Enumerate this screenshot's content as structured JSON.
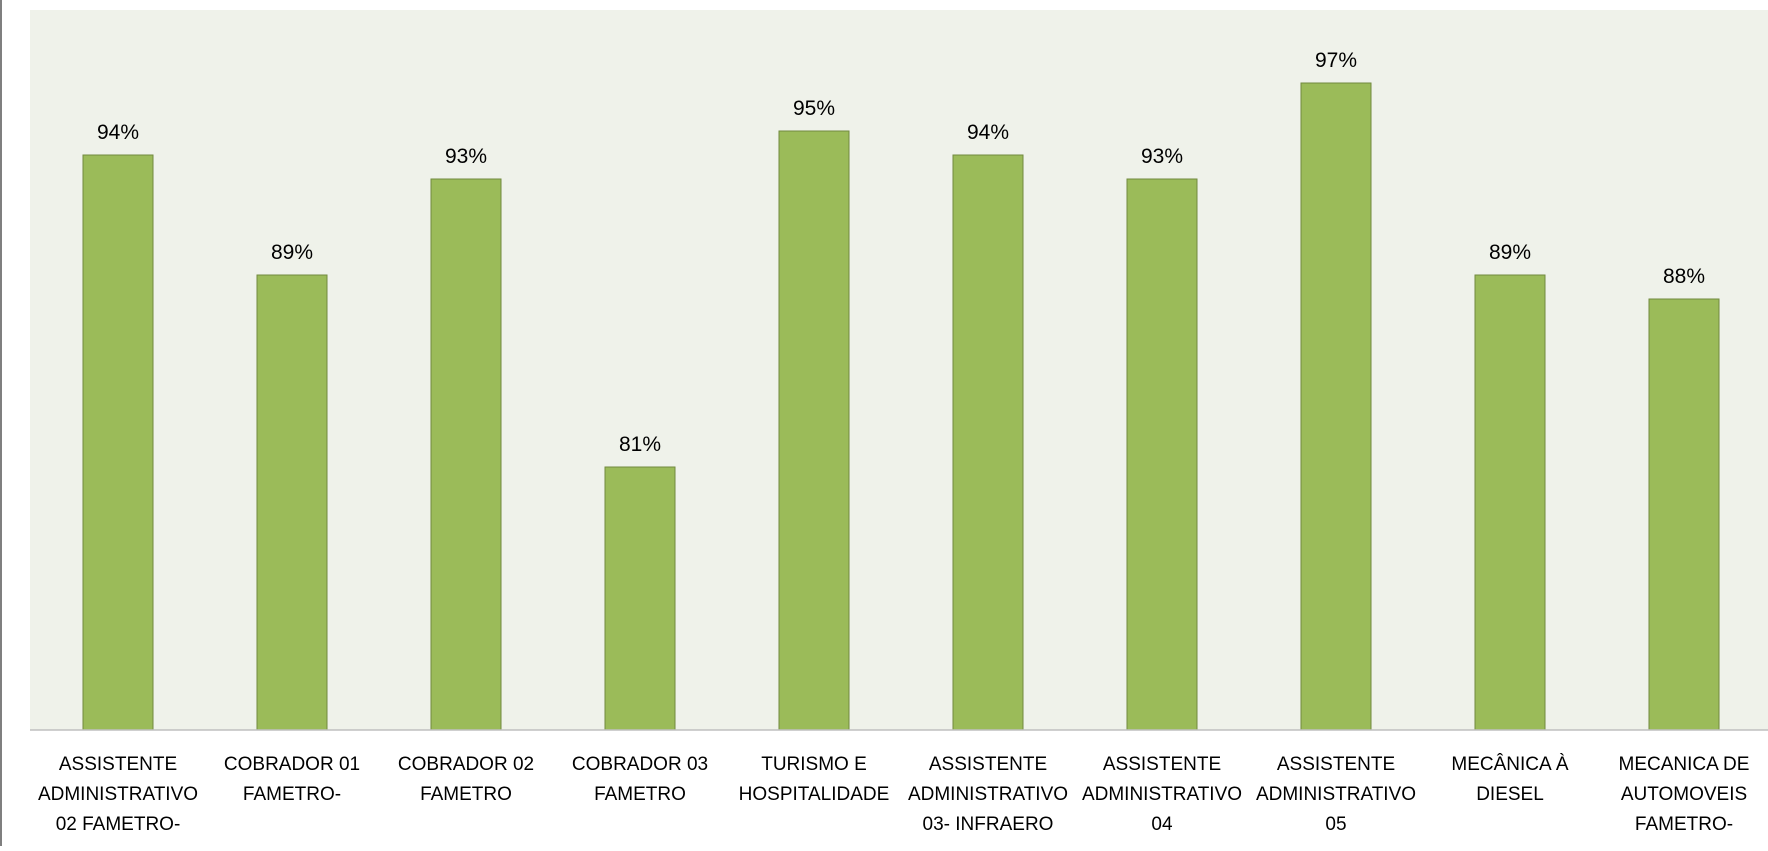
{
  "chart_data": {
    "type": "bar",
    "categories": [
      "ASSISTENTE ADMINISTRATIVO 02 FAMETRO-",
      "COBRADOR 01 FAMETRO-",
      "COBRADOR 02 FAMETRO",
      "COBRADOR 03 FAMETRO",
      "TURISMO E HOSPITALIDADE",
      "ASSISTENTE ADMINISTRATIVO 03- INFRAERO",
      "ASSISTENTE ADMINISTRATIVO 04",
      "ASSISTENTE ADMINISTRATIVO 05",
      "MECÂNICA À DIESEL",
      "MECANICA DE AUTOMOVEIS FAMETRO-"
    ],
    "category_lines": [
      [
        "ASSISTENTE",
        "ADMINISTRATIVO",
        "02 FAMETRO-"
      ],
      [
        "COBRADOR 01",
        "FAMETRO-"
      ],
      [
        "COBRADOR 02",
        "FAMETRO"
      ],
      [
        "COBRADOR 03",
        "FAMETRO"
      ],
      [
        "TURISMO E",
        "HOSPITALIDADE"
      ],
      [
        "ASSISTENTE",
        "ADMINISTRATIVO",
        "03- INFRAERO"
      ],
      [
        "ASSISTENTE",
        "ADMINISTRATIVO",
        "04"
      ],
      [
        "ASSISTENTE",
        "ADMINISTRATIVO",
        "05"
      ],
      [
        "MECÂNICA À",
        "DIESEL"
      ],
      [
        "MECANICA DE",
        "AUTOMOVEIS",
        "FAMETRO-"
      ]
    ],
    "values": [
      94,
      89,
      93,
      81,
      95,
      94,
      93,
      97,
      89,
      88
    ],
    "value_labels": [
      "94%",
      "89%",
      "93%",
      "81%",
      "95%",
      "94%",
      "93%",
      "97%",
      "89%",
      "88%"
    ],
    "ylim": [
      70,
      100
    ],
    "grid": false,
    "legend": "none",
    "colors": {
      "bar_fill": "#9BBB59",
      "bar_stroke": "#71893F",
      "plot_background": "#EFF2EA",
      "axis_line": "#BFBFBF",
      "text": "#000000",
      "frame": "#7F7F7F"
    }
  }
}
